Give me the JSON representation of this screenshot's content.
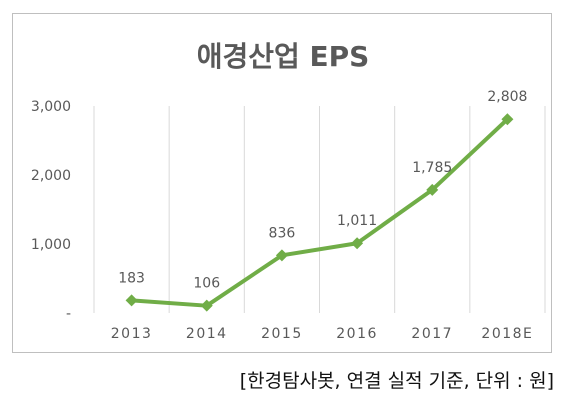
{
  "chart_data": {
    "type": "line",
    "title": "애경산업 EPS",
    "categories": [
      "2013",
      "2014",
      "2015",
      "2016",
      "2017",
      "2018E"
    ],
    "series": [
      {
        "values": [
          183,
          106,
          836,
          1011,
          1785,
          2808
        ],
        "value_labels": [
          "183",
          "106",
          "836",
          "1,011",
          "1,785",
          "2,808"
        ]
      }
    ],
    "yticks": [
      {
        "value": 0,
        "label": "-"
      },
      {
        "value": 1000,
        "label": "1,000"
      },
      {
        "value": 2000,
        "label": "2,000"
      },
      {
        "value": 3000,
        "label": "3,000"
      }
    ],
    "ylim": [
      0,
      3000
    ],
    "grid": "vertical",
    "legend": "none",
    "colors": {
      "line": "#70ad47",
      "grid": "#d9d9d9",
      "axis_text": "#595959",
      "title": "#595959"
    }
  },
  "note": "[한경탐사봇, 연결 실적 기준, 단위 : 원]"
}
